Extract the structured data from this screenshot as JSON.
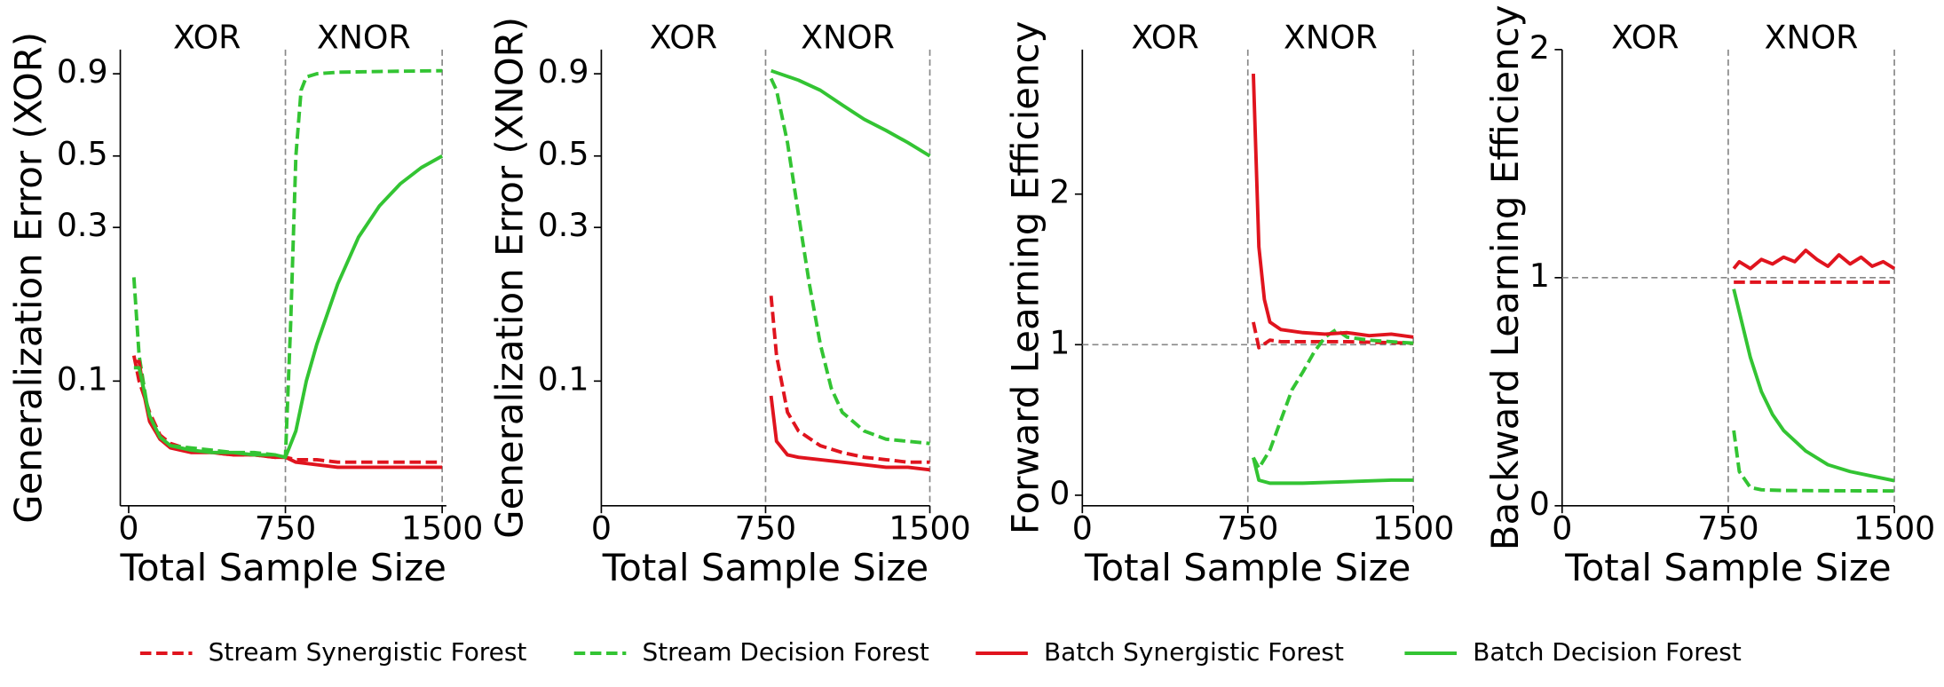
{
  "chart_data": [
    {
      "type": "line",
      "x_label": "Total Sample Size",
      "y_label": "Generalization Error (XOR)",
      "annotations": [
        "XOR",
        "XNOR"
      ],
      "ylog": true,
      "xlim": [
        -40,
        1520
      ],
      "xticks": [
        0,
        750,
        1500
      ],
      "ylim": [
        0.041,
        1.07
      ],
      "yticks": [
        0.1,
        0.3,
        0.5,
        0.9
      ],
      "vlines": [
        750,
        1500
      ],
      "series": [
        {
          "name": "Stream Synergistic Forest",
          "color": "#e0141e",
          "dashed": true,
          "x": [
            25,
            50,
            100,
            150,
            200,
            300,
            400,
            500,
            600,
            700,
            750,
            800,
            900,
            1000,
            1100,
            1200,
            1300,
            1400,
            1500
          ],
          "values": [
            0.12,
            0.1,
            0.08,
            0.068,
            0.064,
            0.061,
            0.06,
            0.059,
            0.059,
            0.058,
            0.058,
            0.057,
            0.057,
            0.056,
            0.056,
            0.056,
            0.056,
            0.056,
            0.056
          ]
        },
        {
          "name": "Stream Decision Forest",
          "color": "#33c433",
          "dashed": true,
          "x": [
            25,
            50,
            100,
            150,
            200,
            300,
            400,
            500,
            600,
            700,
            750,
            775,
            800,
            825,
            850,
            900,
            1000,
            1200,
            1500
          ],
          "values": [
            0.21,
            0.12,
            0.075,
            0.066,
            0.063,
            0.062,
            0.061,
            0.06,
            0.06,
            0.059,
            0.058,
            0.15,
            0.5,
            0.8,
            0.88,
            0.9,
            0.91,
            0.915,
            0.92
          ]
        },
        {
          "name": "Batch Synergistic Forest",
          "color": "#e0141e",
          "dashed": false,
          "x": [
            25,
            50,
            75,
            100,
            150,
            200,
            300,
            400,
            500,
            600,
            700,
            750,
            800,
            900,
            1000,
            1100,
            1200,
            1300,
            1400,
            1500
          ],
          "values": [
            0.115,
            0.115,
            0.09,
            0.075,
            0.066,
            0.062,
            0.06,
            0.06,
            0.059,
            0.059,
            0.058,
            0.058,
            0.056,
            0.055,
            0.054,
            0.054,
            0.054,
            0.054,
            0.054,
            0.054
          ]
        },
        {
          "name": "Batch Decision Forest",
          "color": "#33c433",
          "dashed": false,
          "x": [
            25,
            50,
            100,
            150,
            200,
            300,
            400,
            500,
            600,
            700,
            750,
            800,
            850,
            900,
            1000,
            1100,
            1200,
            1300,
            1400,
            1500
          ],
          "values": [
            0.11,
            0.11,
            0.078,
            0.067,
            0.063,
            0.061,
            0.06,
            0.06,
            0.059,
            0.059,
            0.058,
            0.07,
            0.1,
            0.13,
            0.2,
            0.28,
            0.35,
            0.41,
            0.46,
            0.5
          ]
        }
      ]
    },
    {
      "type": "line",
      "x_label": "Total Sample Size",
      "y_label": "Generalization Error (XNOR)",
      "annotations": [
        "XOR",
        "XNOR"
      ],
      "ylog": true,
      "xlim": [
        0,
        1500
      ],
      "xticks": [
        0,
        750,
        1500
      ],
      "ylim": [
        0.041,
        1.07
      ],
      "yticks": [
        0.1,
        0.3,
        0.5,
        0.9
      ],
      "vlines": [
        750,
        1500
      ],
      "series": [
        {
          "color": "#e0141e",
          "dashed": true,
          "x": [
            775,
            800,
            850,
            900,
            1000,
            1100,
            1200,
            1300,
            1400,
            1500
          ],
          "values": [
            0.184,
            0.12,
            0.08,
            0.07,
            0.063,
            0.06,
            0.058,
            0.057,
            0.056,
            0.056
          ]
        },
        {
          "color": "#33c433",
          "dashed": true,
          "x": [
            775,
            800,
            850,
            900,
            950,
            1000,
            1050,
            1100,
            1200,
            1300,
            1400,
            1500
          ],
          "values": [
            0.87,
            0.8,
            0.55,
            0.33,
            0.2,
            0.13,
            0.095,
            0.08,
            0.07,
            0.066,
            0.065,
            0.064
          ]
        },
        {
          "color": "#e0141e",
          "dashed": false,
          "x": [
            775,
            800,
            850,
            900,
            1000,
            1100,
            1200,
            1300,
            1400,
            1500
          ],
          "values": [
            0.09,
            0.065,
            0.059,
            0.058,
            0.057,
            0.056,
            0.055,
            0.054,
            0.054,
            0.053
          ]
        },
        {
          "color": "#33c433",
          "dashed": false,
          "x": [
            775,
            900,
            1000,
            1100,
            1200,
            1300,
            1400,
            1500
          ],
          "values": [
            0.92,
            0.86,
            0.8,
            0.72,
            0.65,
            0.6,
            0.55,
            0.5
          ]
        }
      ]
    },
    {
      "type": "line",
      "x_label": "Total Sample Size",
      "y_label": "Forward Learning Efficiency",
      "annotations": [
        "XOR",
        "XNOR"
      ],
      "ylog": false,
      "xlim": [
        0,
        1500
      ],
      "xticks": [
        0,
        750,
        1500
      ],
      "ylim": [
        -0.07,
        2.96
      ],
      "yticks": [
        0,
        1,
        2
      ],
      "vlines": [
        750,
        1500
      ],
      "hlines": [
        1
      ],
      "series": [
        {
          "color": "#e0141e",
          "dashed": true,
          "x": [
            775,
            800,
            850,
            900,
            1000,
            1200,
            1500
          ],
          "values": [
            1.15,
            0.98,
            1.03,
            1.02,
            1.02,
            1.02,
            1.01
          ]
        },
        {
          "color": "#33c433",
          "dashed": true,
          "x": [
            775,
            800,
            850,
            900,
            950,
            1000,
            1050,
            1100,
            1150,
            1200,
            1300,
            1500
          ],
          "values": [
            0.25,
            0.18,
            0.3,
            0.5,
            0.7,
            0.82,
            0.95,
            1.05,
            1.1,
            1.05,
            1.03,
            1.01
          ]
        },
        {
          "color": "#e0141e",
          "dashed": false,
          "x": [
            775,
            800,
            825,
            850,
            900,
            1000,
            1100,
            1200,
            1300,
            1400,
            1500
          ],
          "values": [
            2.8,
            1.65,
            1.3,
            1.15,
            1.1,
            1.08,
            1.07,
            1.08,
            1.06,
            1.07,
            1.05
          ]
        },
        {
          "color": "#33c433",
          "dashed": false,
          "x": [
            775,
            800,
            850,
            1000,
            1200,
            1400,
            1500
          ],
          "values": [
            0.25,
            0.1,
            0.08,
            0.08,
            0.09,
            0.1,
            0.1
          ]
        }
      ]
    },
    {
      "type": "line",
      "x_label": "Total Sample Size",
      "y_label": "Backward Learning Efficiency",
      "annotations": [
        "XOR",
        "XNOR"
      ],
      "ylog": false,
      "xlim": [
        0,
        1500
      ],
      "xticks": [
        0,
        750,
        1500
      ],
      "ylim": [
        0,
        2
      ],
      "yticks": [
        0,
        1,
        2
      ],
      "vlines": [
        750,
        1500
      ],
      "hlines": [
        1
      ],
      "series": [
        {
          "color": "#e0141e",
          "dashed": true,
          "x": [
            775,
            900,
            1100,
            1300,
            1500
          ],
          "values": [
            0.98,
            0.98,
            0.98,
            0.98,
            0.98
          ]
        },
        {
          "color": "#33c433",
          "dashed": true,
          "x": [
            775,
            800,
            850,
            900,
            1000,
            1200,
            1500
          ],
          "values": [
            0.33,
            0.15,
            0.08,
            0.07,
            0.067,
            0.066,
            0.065
          ]
        },
        {
          "color": "#e0141e",
          "dashed": false,
          "x": [
            775,
            800,
            850,
            900,
            950,
            1000,
            1050,
            1100,
            1150,
            1200,
            1250,
            1300,
            1350,
            1400,
            1450,
            1500
          ],
          "values": [
            1.04,
            1.07,
            1.04,
            1.08,
            1.06,
            1.09,
            1.07,
            1.12,
            1.08,
            1.05,
            1.1,
            1.06,
            1.09,
            1.05,
            1.07,
            1.04
          ]
        },
        {
          "color": "#33c433",
          "dashed": false,
          "x": [
            775,
            800,
            850,
            900,
            950,
            1000,
            1100,
            1200,
            1300,
            1400,
            1500
          ],
          "values": [
            0.95,
            0.85,
            0.65,
            0.5,
            0.4,
            0.33,
            0.24,
            0.18,
            0.15,
            0.13,
            0.11
          ]
        }
      ]
    }
  ]
}
